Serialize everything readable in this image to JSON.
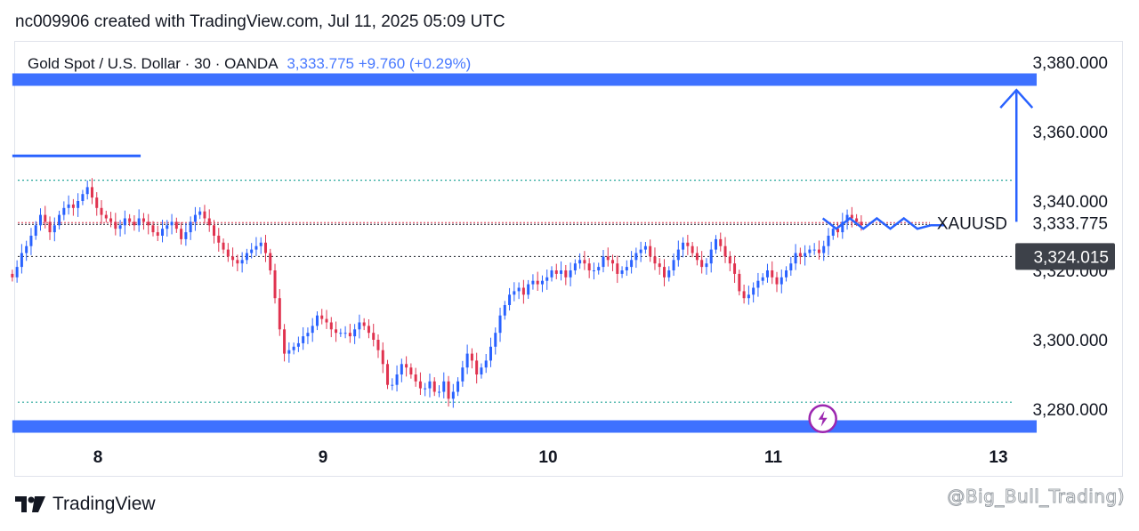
{
  "header": {
    "attribution": "nc009906 created with TradingView.com, Jul 11, 2025 05:09 UTC"
  },
  "legend": {
    "symbol_info": "Gold Spot / U.S. Dollar · 30 · OANDA",
    "price_change": "3,333.775  +9.760 (+0.29%)"
  },
  "footer": {
    "brand": "TradingView",
    "watermark": "@Big_Bull_Trading)"
  },
  "colors": {
    "up": "#2962ff",
    "down": "#e0334f",
    "zone": "#2962ff",
    "dotted_level": "#26a69a",
    "last_price_line": "#e0334f"
  },
  "chart_data": {
    "type": "candlestick",
    "symbol": "XAUUSD",
    "ylim": [
      3270,
      3385
    ],
    "y_ticks": [
      "3,380.000",
      "3,360.000",
      "3,340.000",
      "3,320.000",
      "3,300.000",
      "3,280.000"
    ],
    "y_tick_values": [
      3380,
      3360,
      3340,
      3320,
      3300,
      3280
    ],
    "x_ticks": [
      "8",
      "9",
      "10",
      "11",
      "13"
    ],
    "x_tick_positions_day": [
      8,
      9,
      10,
      11,
      12
    ],
    "price_labels": [
      {
        "text": "XAUUSD",
        "value": 3333.775,
        "kind": "symbol"
      },
      {
        "text": "3,333.775",
        "value": 3333.775,
        "kind": "last"
      },
      {
        "text": "3,324.015",
        "value": 3324.015,
        "kind": "crosshair"
      }
    ],
    "zones": [
      {
        "name": "resistance",
        "value": 3375,
        "x_start_day": 7.62,
        "x_end_day": 12.17
      },
      {
        "name": "support",
        "value": 3275,
        "x_start_day": 7.62,
        "x_end_day": 12.17
      }
    ],
    "short_line": {
      "value": 3353,
      "x_start_day": 7.62,
      "x_end_day": 8.19
    },
    "dotted_levels": [
      3346,
      3282
    ],
    "target_arrow": {
      "x_day": 12.08,
      "from": 3334,
      "to": 3372
    },
    "projection_zigzag": [
      {
        "day": 11.22,
        "value": 3335
      },
      {
        "day": 11.28,
        "value": 3332
      },
      {
        "day": 11.34,
        "value": 3335
      },
      {
        "day": 11.4,
        "value": 3332
      },
      {
        "day": 11.46,
        "value": 3335
      },
      {
        "day": 11.52,
        "value": 3332
      },
      {
        "day": 11.58,
        "value": 3335
      },
      {
        "day": 11.64,
        "value": 3332
      },
      {
        "day": 11.7,
        "value": 3333
      },
      {
        "day": 11.76,
        "value": 3333
      }
    ],
    "event_marker": {
      "day": 11.22,
      "value": 3278
    },
    "candle_interval_minutes": 30,
    "start_day": 7.62,
    "closes": [
      3318,
      3321,
      3325,
      3327,
      3330,
      3333,
      3336,
      3334,
      3331,
      3333,
      3336,
      3338,
      3339,
      3338,
      3340,
      3342,
      3344,
      3341,
      3338,
      3336,
      3335,
      3334,
      3332,
      3333,
      3335,
      3334,
      3333,
      3335,
      3334,
      3333,
      3331,
      3330,
      3332,
      3333,
      3334,
      3332,
      3329,
      3331,
      3334,
      3336,
      3337,
      3335,
      3333,
      3330,
      3328,
      3326,
      3324,
      3323,
      3322,
      3323,
      3325,
      3326,
      3327,
      3328,
      3325,
      3320,
      3312,
      3303,
      3296,
      3297,
      3298,
      3299,
      3301,
      3302,
      3304,
      3307,
      3306,
      3305,
      3303,
      3302,
      3302,
      3302,
      3301,
      3303,
      3305,
      3304,
      3302,
      3300,
      3297,
      3293,
      3287,
      3287,
      3290,
      3293,
      3292,
      3290,
      3288,
      3286,
      3286,
      3288,
      3285,
      3285,
      3288,
      3283,
      3285,
      3288,
      3292,
      3296,
      3294,
      3290,
      3292,
      3294,
      3298,
      3302,
      3307,
      3310,
      3313,
      3314,
      3315,
      3313,
      3316,
      3317,
      3316,
      3317,
      3318,
      3320,
      3319,
      3320,
      3318,
      3320,
      3322,
      3323,
      3322,
      3320,
      3320,
      3321,
      3324,
      3323,
      3322,
      3319,
      3320,
      3321,
      3323,
      3325,
      3326,
      3327,
      3324,
      3322,
      3321,
      3318,
      3320,
      3323,
      3326,
      3328,
      3327,
      3325,
      3323,
      3321,
      3322,
      3326,
      3329,
      3327,
      3324,
      3322,
      3319,
      3314,
      3312,
      3313,
      3315,
      3317,
      3318,
      3320,
      3318,
      3316,
      3318,
      3320,
      3322,
      3325,
      3324,
      3325,
      3326,
      3326,
      3325,
      3327,
      3330,
      3332,
      3331,
      3334,
      3336,
      3335,
      3334,
      3333
    ],
    "axis_day_span": [
      7.62,
      12.17
    ]
  }
}
